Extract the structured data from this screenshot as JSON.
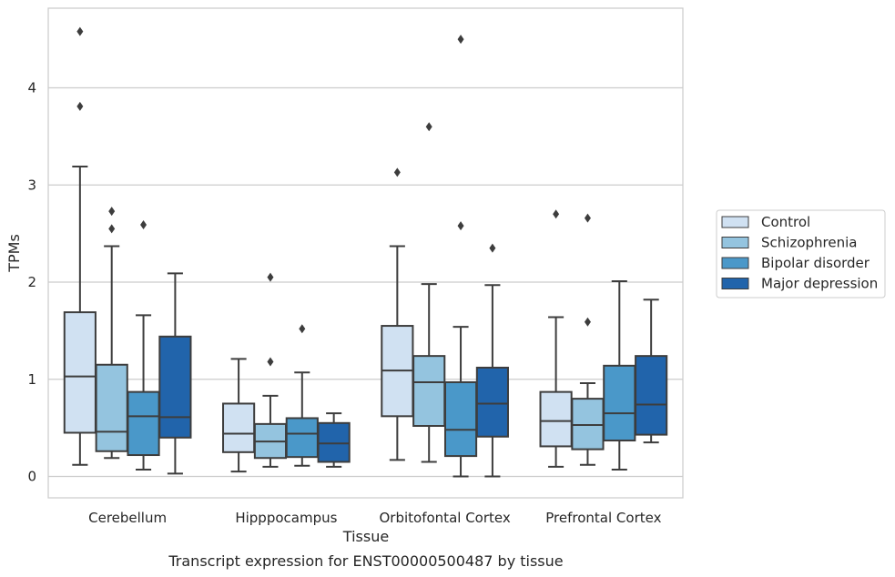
{
  "chart_data": {
    "type": "boxplot",
    "caption": "Transcript expression for ENST00000500487 by tissue",
    "xlabel": "Tissue",
    "ylabel": "TPMs",
    "ylim": [
      -0.22,
      4.82
    ],
    "yticks": [
      "0",
      "1",
      "2",
      "3",
      "4"
    ],
    "grid": "horizontal",
    "legend_position": "right",
    "categories": [
      "Cerebellum",
      "Hipppocampus",
      "Orbitofontal Cortex",
      "Prefrontal Cortex"
    ],
    "series": [
      {
        "name": "Control",
        "color": "#d0e1f2",
        "boxes": [
          {
            "whislo": 0.12,
            "q1": 0.45,
            "med": 1.03,
            "q3": 1.69,
            "whishi": 3.19,
            "fliers": [
              3.81,
              4.58
            ]
          },
          {
            "whislo": 0.05,
            "q1": 0.25,
            "med": 0.44,
            "q3": 0.75,
            "whishi": 1.21,
            "fliers": []
          },
          {
            "whislo": 0.17,
            "q1": 0.62,
            "med": 1.09,
            "q3": 1.55,
            "whishi": 2.37,
            "fliers": [
              3.13
            ]
          },
          {
            "whislo": 0.1,
            "q1": 0.31,
            "med": 0.57,
            "q3": 0.87,
            "whishi": 1.64,
            "fliers": [
              2.7
            ]
          }
        ]
      },
      {
        "name": "Schizophrenia",
        "color": "#94c4df",
        "boxes": [
          {
            "whislo": 0.19,
            "q1": 0.26,
            "med": 0.46,
            "q3": 1.15,
            "whishi": 2.37,
            "fliers": [
              2.55,
              2.73
            ]
          },
          {
            "whislo": 0.1,
            "q1": 0.19,
            "med": 0.36,
            "q3": 0.54,
            "whishi": 0.83,
            "fliers": [
              1.18,
              2.05
            ]
          },
          {
            "whislo": 0.15,
            "q1": 0.52,
            "med": 0.97,
            "q3": 1.24,
            "whishi": 1.98,
            "fliers": [
              3.6
            ]
          },
          {
            "whislo": 0.12,
            "q1": 0.28,
            "med": 0.53,
            "q3": 0.8,
            "whishi": 0.96,
            "fliers": [
              1.59,
              2.66
            ]
          }
        ]
      },
      {
        "name": "Bipolar disorder",
        "color": "#4a98c9",
        "boxes": [
          {
            "whislo": 0.07,
            "q1": 0.22,
            "med": 0.62,
            "q3": 0.87,
            "whishi": 1.66,
            "fliers": [
              2.59
            ]
          },
          {
            "whislo": 0.11,
            "q1": 0.2,
            "med": 0.44,
            "q3": 0.6,
            "whishi": 1.07,
            "fliers": [
              1.52
            ]
          },
          {
            "whislo": 0.0,
            "q1": 0.21,
            "med": 0.48,
            "q3": 0.97,
            "whishi": 1.54,
            "fliers": [
              2.58,
              4.5
            ]
          },
          {
            "whislo": 0.07,
            "q1": 0.37,
            "med": 0.65,
            "q3": 1.14,
            "whishi": 2.01,
            "fliers": []
          }
        ]
      },
      {
        "name": "Major depression",
        "color": "#2164ab",
        "boxes": [
          {
            "whislo": 0.03,
            "q1": 0.4,
            "med": 0.61,
            "q3": 1.44,
            "whishi": 2.09,
            "fliers": []
          },
          {
            "whislo": 0.1,
            "q1": 0.15,
            "med": 0.34,
            "q3": 0.55,
            "whishi": 0.65,
            "fliers": []
          },
          {
            "whislo": 0.0,
            "q1": 0.41,
            "med": 0.75,
            "q3": 1.12,
            "whishi": 1.97,
            "fliers": [
              2.35
            ]
          },
          {
            "whislo": 0.35,
            "q1": 0.43,
            "med": 0.74,
            "q3": 1.24,
            "whishi": 1.82,
            "fliers": []
          }
        ]
      }
    ]
  }
}
